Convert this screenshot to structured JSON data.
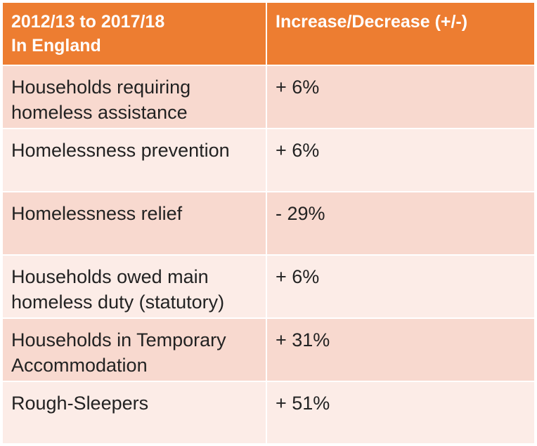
{
  "table": {
    "header": {
      "col1_line1": "2012/13 to 2017/18",
      "col1_line2": "In England",
      "col2": "Increase/Decrease (+/-)"
    },
    "rows": [
      {
        "label_line1": "Households requiring",
        "label_line2": "homeless assistance",
        "value": "+ 6%"
      },
      {
        "label_line1": "Homelessness prevention",
        "label_line2": "",
        "value": "+ 6%"
      },
      {
        "label_line1": "Homelessness relief",
        "label_line2": "",
        "value": "- 29%"
      },
      {
        "label_line1": "Households owed main",
        "label_line2": "homeless duty (statutory)",
        "value": "+ 6%"
      },
      {
        "label_line1": "Households in Temporary",
        "label_line2": "Accommodation",
        "value": "+ 31%"
      },
      {
        "label_line1": "Rough-Sleepers",
        "label_line2": "",
        "value": "+ 51%"
      }
    ],
    "colors": {
      "header": "#ed7d31",
      "row_dark": "#f8d9cf",
      "row_light": "#fcece7"
    }
  }
}
